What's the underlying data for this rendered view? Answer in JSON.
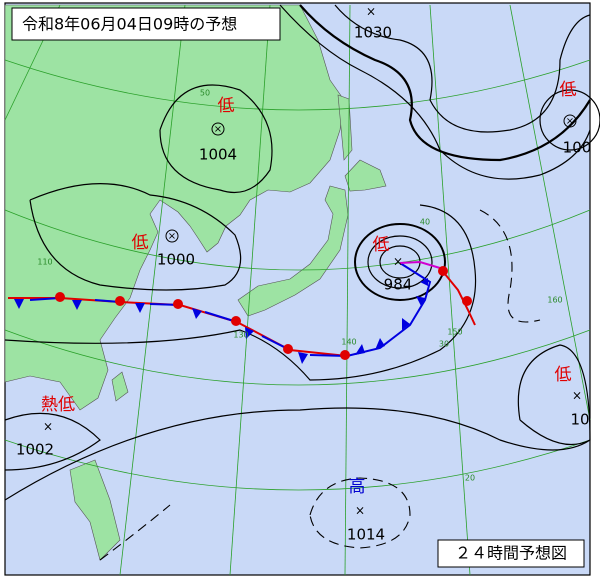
{
  "header": {
    "title": "令和8年06月04日09時の予想"
  },
  "systems": [
    {
      "label": "低",
      "pressure": 1004
    },
    {
      "label": "低",
      "pressure": 1000
    },
    {
      "label": "低",
      "pressure": 984
    },
    {
      "pressure": 1030
    },
    {
      "label": "低",
      "pressure": 100
    },
    {
      "label": "熱低",
      "pressure": 1002
    },
    {
      "label": "高",
      "pressure": 1014
    },
    {
      "label": "低",
      "pressure": 10
    }
  ],
  "grid_labels": [
    "50",
    "40",
    "30",
    "20",
    "110",
    "130",
    "140",
    "150",
    "160"
  ],
  "footer": {
    "label": "２４時間予想図"
  }
}
